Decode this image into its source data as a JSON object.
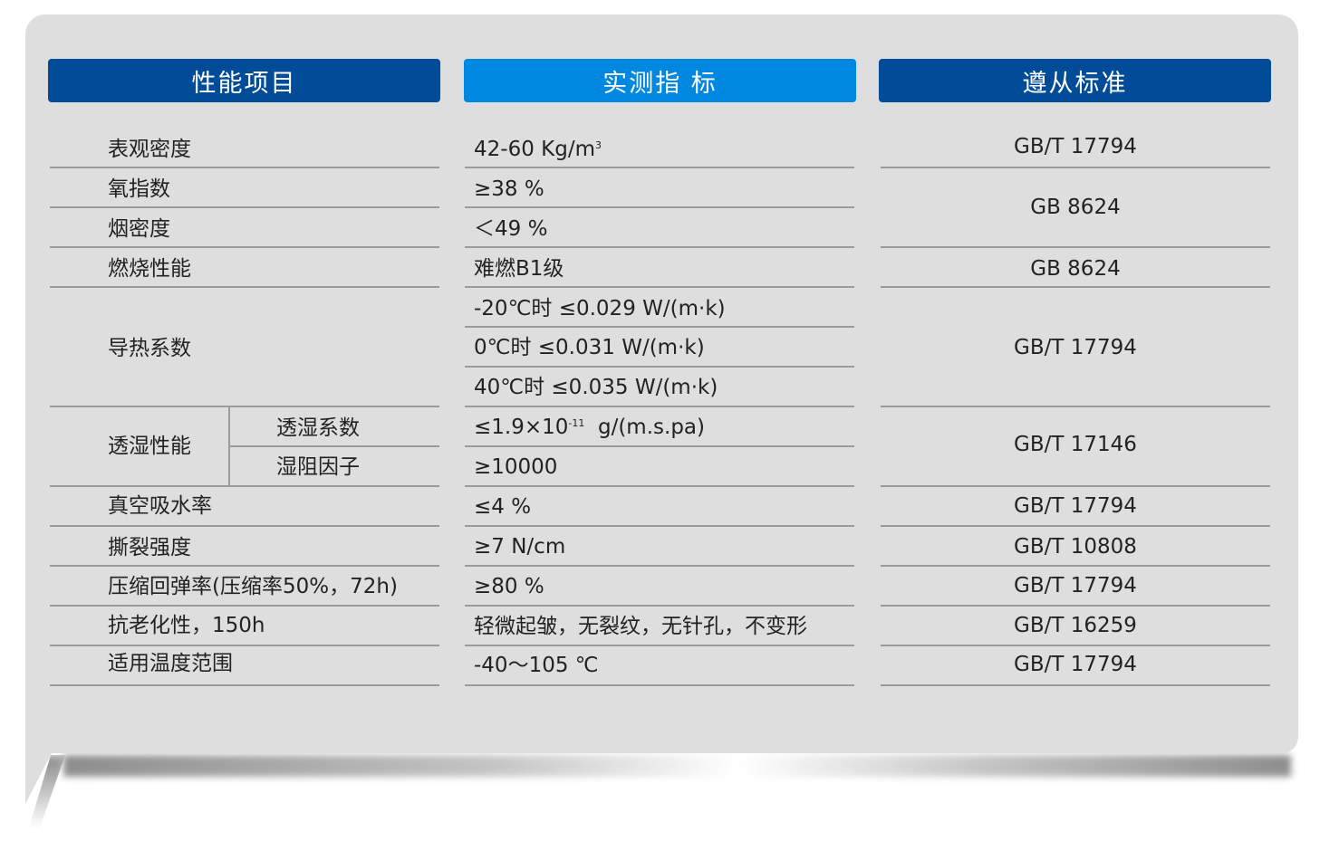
{
  "headers": {
    "property": "性能项目",
    "measured": "实测指 标",
    "standard": "遵从标准"
  },
  "colors": {
    "header_dark": "#004c99",
    "header_light": "#0088e0",
    "panel": "#dedede"
  },
  "rows": {
    "density": {
      "property": "表观密度",
      "value": "42-60 Kg/m",
      "value_sup": "3",
      "standard": "GB/T 17794"
    },
    "oxygen": {
      "property": "氧指数",
      "value": "≥38 %"
    },
    "smoke": {
      "property": "烟密度",
      "value": "＜49 %"
    },
    "oxy_smoke_standard": "GB 8624",
    "burning": {
      "property": "燃烧性能",
      "value": "难燃B1级",
      "standard": "GB 8624"
    },
    "thermal": {
      "property": "导热系数",
      "values": [
        "-20℃时 ≤0.029 W/(m·k)",
        "0℃时 ≤0.031 W/(m·k)",
        "40℃时 ≤0.035 W/(m·k)"
      ],
      "standard": "GB/T 17794"
    },
    "permeability": {
      "property": "透湿性能",
      "sub1": "透湿系数",
      "value1": "≤1.9×10",
      "value1_sup": "-11",
      "value1_unit": "g/(m.s.pa)",
      "sub2": "湿阻因子",
      "value2": "≥10000",
      "standard": "GB/T 17146"
    },
    "absorption": {
      "property": "真空吸水率",
      "value": "≤4 %",
      "standard": "GB/T 17794"
    },
    "tear": {
      "property": "撕裂强度",
      "value": "≥7 N/cm",
      "standard": "GB/T 10808"
    },
    "compression": {
      "property": "压缩回弹率(压缩率50%，72h)",
      "value": "≥80 %",
      "standard": "GB/T 17794"
    },
    "aging": {
      "property": "抗老化性，150h",
      "value": "轻微起皱，无裂纹，无针孔，不变形",
      "standard": "GB/T 16259"
    },
    "temperature": {
      "property": "适用温度范围",
      "value": "-40～105 ℃",
      "standard": "GB/T 17794"
    }
  }
}
